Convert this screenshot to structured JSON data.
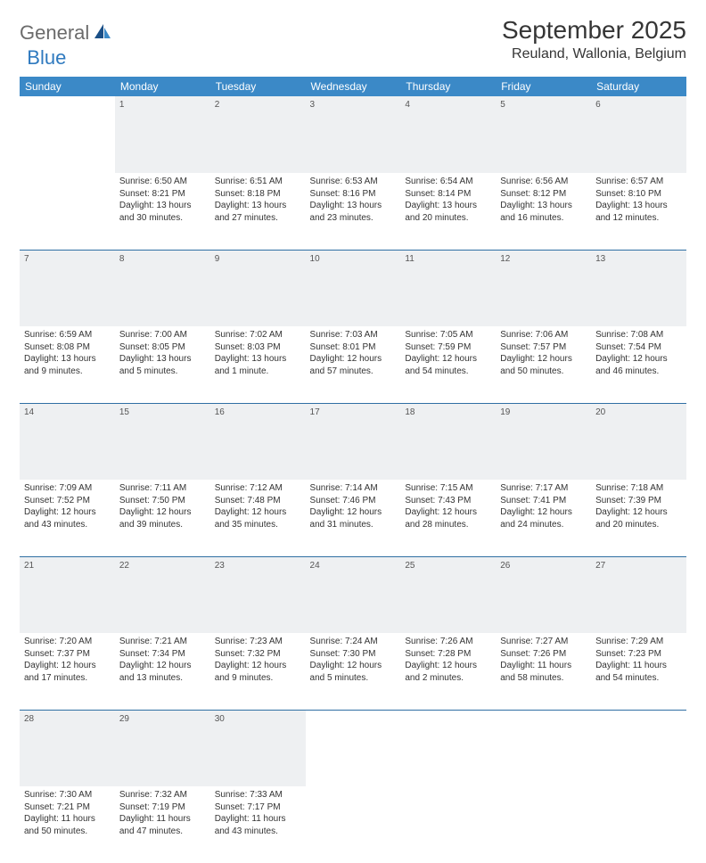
{
  "logo": {
    "part1": "General",
    "part2": "Blue"
  },
  "title": "September 2025",
  "location": "Reuland, Wallonia, Belgium",
  "colors": {
    "header_bg": "#3b89c7",
    "header_text": "#ffffff",
    "daynum_bg": "#eef0f2",
    "row_border": "#2f6fa3",
    "logo_gray": "#6b6b6b",
    "logo_blue": "#2f7abf",
    "text": "#333333"
  },
  "day_headers": [
    "Sunday",
    "Monday",
    "Tuesday",
    "Wednesday",
    "Thursday",
    "Friday",
    "Saturday"
  ],
  "weeks": [
    {
      "nums": [
        "",
        "1",
        "2",
        "3",
        "4",
        "5",
        "6"
      ],
      "cells": [
        null,
        {
          "sunrise": "Sunrise: 6:50 AM",
          "sunset": "Sunset: 8:21 PM",
          "day1": "Daylight: 13 hours",
          "day2": "and 30 minutes."
        },
        {
          "sunrise": "Sunrise: 6:51 AM",
          "sunset": "Sunset: 8:18 PM",
          "day1": "Daylight: 13 hours",
          "day2": "and 27 minutes."
        },
        {
          "sunrise": "Sunrise: 6:53 AM",
          "sunset": "Sunset: 8:16 PM",
          "day1": "Daylight: 13 hours",
          "day2": "and 23 minutes."
        },
        {
          "sunrise": "Sunrise: 6:54 AM",
          "sunset": "Sunset: 8:14 PM",
          "day1": "Daylight: 13 hours",
          "day2": "and 20 minutes."
        },
        {
          "sunrise": "Sunrise: 6:56 AM",
          "sunset": "Sunset: 8:12 PM",
          "day1": "Daylight: 13 hours",
          "day2": "and 16 minutes."
        },
        {
          "sunrise": "Sunrise: 6:57 AM",
          "sunset": "Sunset: 8:10 PM",
          "day1": "Daylight: 13 hours",
          "day2": "and 12 minutes."
        }
      ]
    },
    {
      "nums": [
        "7",
        "8",
        "9",
        "10",
        "11",
        "12",
        "13"
      ],
      "cells": [
        {
          "sunrise": "Sunrise: 6:59 AM",
          "sunset": "Sunset: 8:08 PM",
          "day1": "Daylight: 13 hours",
          "day2": "and 9 minutes."
        },
        {
          "sunrise": "Sunrise: 7:00 AM",
          "sunset": "Sunset: 8:05 PM",
          "day1": "Daylight: 13 hours",
          "day2": "and 5 minutes."
        },
        {
          "sunrise": "Sunrise: 7:02 AM",
          "sunset": "Sunset: 8:03 PM",
          "day1": "Daylight: 13 hours",
          "day2": "and 1 minute."
        },
        {
          "sunrise": "Sunrise: 7:03 AM",
          "sunset": "Sunset: 8:01 PM",
          "day1": "Daylight: 12 hours",
          "day2": "and 57 minutes."
        },
        {
          "sunrise": "Sunrise: 7:05 AM",
          "sunset": "Sunset: 7:59 PM",
          "day1": "Daylight: 12 hours",
          "day2": "and 54 minutes."
        },
        {
          "sunrise": "Sunrise: 7:06 AM",
          "sunset": "Sunset: 7:57 PM",
          "day1": "Daylight: 12 hours",
          "day2": "and 50 minutes."
        },
        {
          "sunrise": "Sunrise: 7:08 AM",
          "sunset": "Sunset: 7:54 PM",
          "day1": "Daylight: 12 hours",
          "day2": "and 46 minutes."
        }
      ]
    },
    {
      "nums": [
        "14",
        "15",
        "16",
        "17",
        "18",
        "19",
        "20"
      ],
      "cells": [
        {
          "sunrise": "Sunrise: 7:09 AM",
          "sunset": "Sunset: 7:52 PM",
          "day1": "Daylight: 12 hours",
          "day2": "and 43 minutes."
        },
        {
          "sunrise": "Sunrise: 7:11 AM",
          "sunset": "Sunset: 7:50 PM",
          "day1": "Daylight: 12 hours",
          "day2": "and 39 minutes."
        },
        {
          "sunrise": "Sunrise: 7:12 AM",
          "sunset": "Sunset: 7:48 PM",
          "day1": "Daylight: 12 hours",
          "day2": "and 35 minutes."
        },
        {
          "sunrise": "Sunrise: 7:14 AM",
          "sunset": "Sunset: 7:46 PM",
          "day1": "Daylight: 12 hours",
          "day2": "and 31 minutes."
        },
        {
          "sunrise": "Sunrise: 7:15 AM",
          "sunset": "Sunset: 7:43 PM",
          "day1": "Daylight: 12 hours",
          "day2": "and 28 minutes."
        },
        {
          "sunrise": "Sunrise: 7:17 AM",
          "sunset": "Sunset: 7:41 PM",
          "day1": "Daylight: 12 hours",
          "day2": "and 24 minutes."
        },
        {
          "sunrise": "Sunrise: 7:18 AM",
          "sunset": "Sunset: 7:39 PM",
          "day1": "Daylight: 12 hours",
          "day2": "and 20 minutes."
        }
      ]
    },
    {
      "nums": [
        "21",
        "22",
        "23",
        "24",
        "25",
        "26",
        "27"
      ],
      "cells": [
        {
          "sunrise": "Sunrise: 7:20 AM",
          "sunset": "Sunset: 7:37 PM",
          "day1": "Daylight: 12 hours",
          "day2": "and 17 minutes."
        },
        {
          "sunrise": "Sunrise: 7:21 AM",
          "sunset": "Sunset: 7:34 PM",
          "day1": "Daylight: 12 hours",
          "day2": "and 13 minutes."
        },
        {
          "sunrise": "Sunrise: 7:23 AM",
          "sunset": "Sunset: 7:32 PM",
          "day1": "Daylight: 12 hours",
          "day2": "and 9 minutes."
        },
        {
          "sunrise": "Sunrise: 7:24 AM",
          "sunset": "Sunset: 7:30 PM",
          "day1": "Daylight: 12 hours",
          "day2": "and 5 minutes."
        },
        {
          "sunrise": "Sunrise: 7:26 AM",
          "sunset": "Sunset: 7:28 PM",
          "day1": "Daylight: 12 hours",
          "day2": "and 2 minutes."
        },
        {
          "sunrise": "Sunrise: 7:27 AM",
          "sunset": "Sunset: 7:26 PM",
          "day1": "Daylight: 11 hours",
          "day2": "and 58 minutes."
        },
        {
          "sunrise": "Sunrise: 7:29 AM",
          "sunset": "Sunset: 7:23 PM",
          "day1": "Daylight: 11 hours",
          "day2": "and 54 minutes."
        }
      ]
    },
    {
      "nums": [
        "28",
        "29",
        "30",
        "",
        "",
        "",
        ""
      ],
      "cells": [
        {
          "sunrise": "Sunrise: 7:30 AM",
          "sunset": "Sunset: 7:21 PM",
          "day1": "Daylight: 11 hours",
          "day2": "and 50 minutes."
        },
        {
          "sunrise": "Sunrise: 7:32 AM",
          "sunset": "Sunset: 7:19 PM",
          "day1": "Daylight: 11 hours",
          "day2": "and 47 minutes."
        },
        {
          "sunrise": "Sunrise: 7:33 AM",
          "sunset": "Sunset: 7:17 PM",
          "day1": "Daylight: 11 hours",
          "day2": "and 43 minutes."
        },
        null,
        null,
        null,
        null
      ]
    }
  ]
}
